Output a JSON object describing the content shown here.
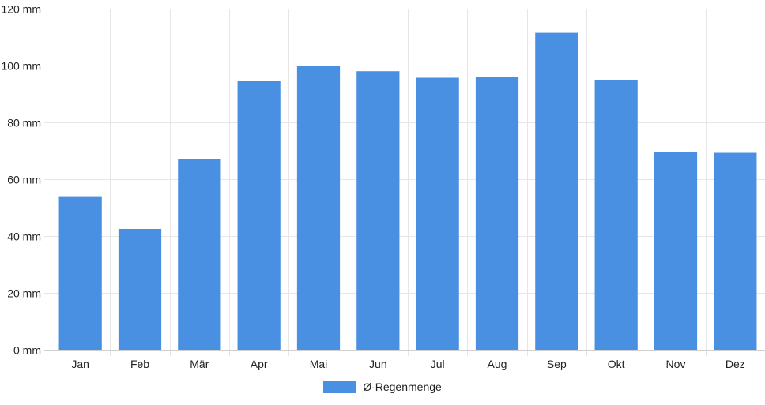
{
  "chart_data": {
    "type": "bar",
    "categories": [
      "Jan",
      "Feb",
      "Mär",
      "Apr",
      "Mai",
      "Jun",
      "Jul",
      "Aug",
      "Sep",
      "Okt",
      "Nov",
      "Dez"
    ],
    "series": [
      {
        "name": "Ø-Regenmenge",
        "values": [
          54,
          42.5,
          67,
          94.5,
          100,
          98,
          95.7,
          96,
          111.5,
          95,
          69.5,
          69.3
        ],
        "color": "#4a90e2"
      }
    ],
    "ylim": [
      0,
      120
    ],
    "yticks": [
      0,
      20,
      40,
      60,
      80,
      100,
      120
    ],
    "ytick_labels": [
      "0 mm",
      "20 mm",
      "40 mm",
      "60 mm",
      "80 mm",
      "100 mm",
      "120 mm"
    ],
    "grid": true,
    "legend_position": "bottom-center"
  }
}
